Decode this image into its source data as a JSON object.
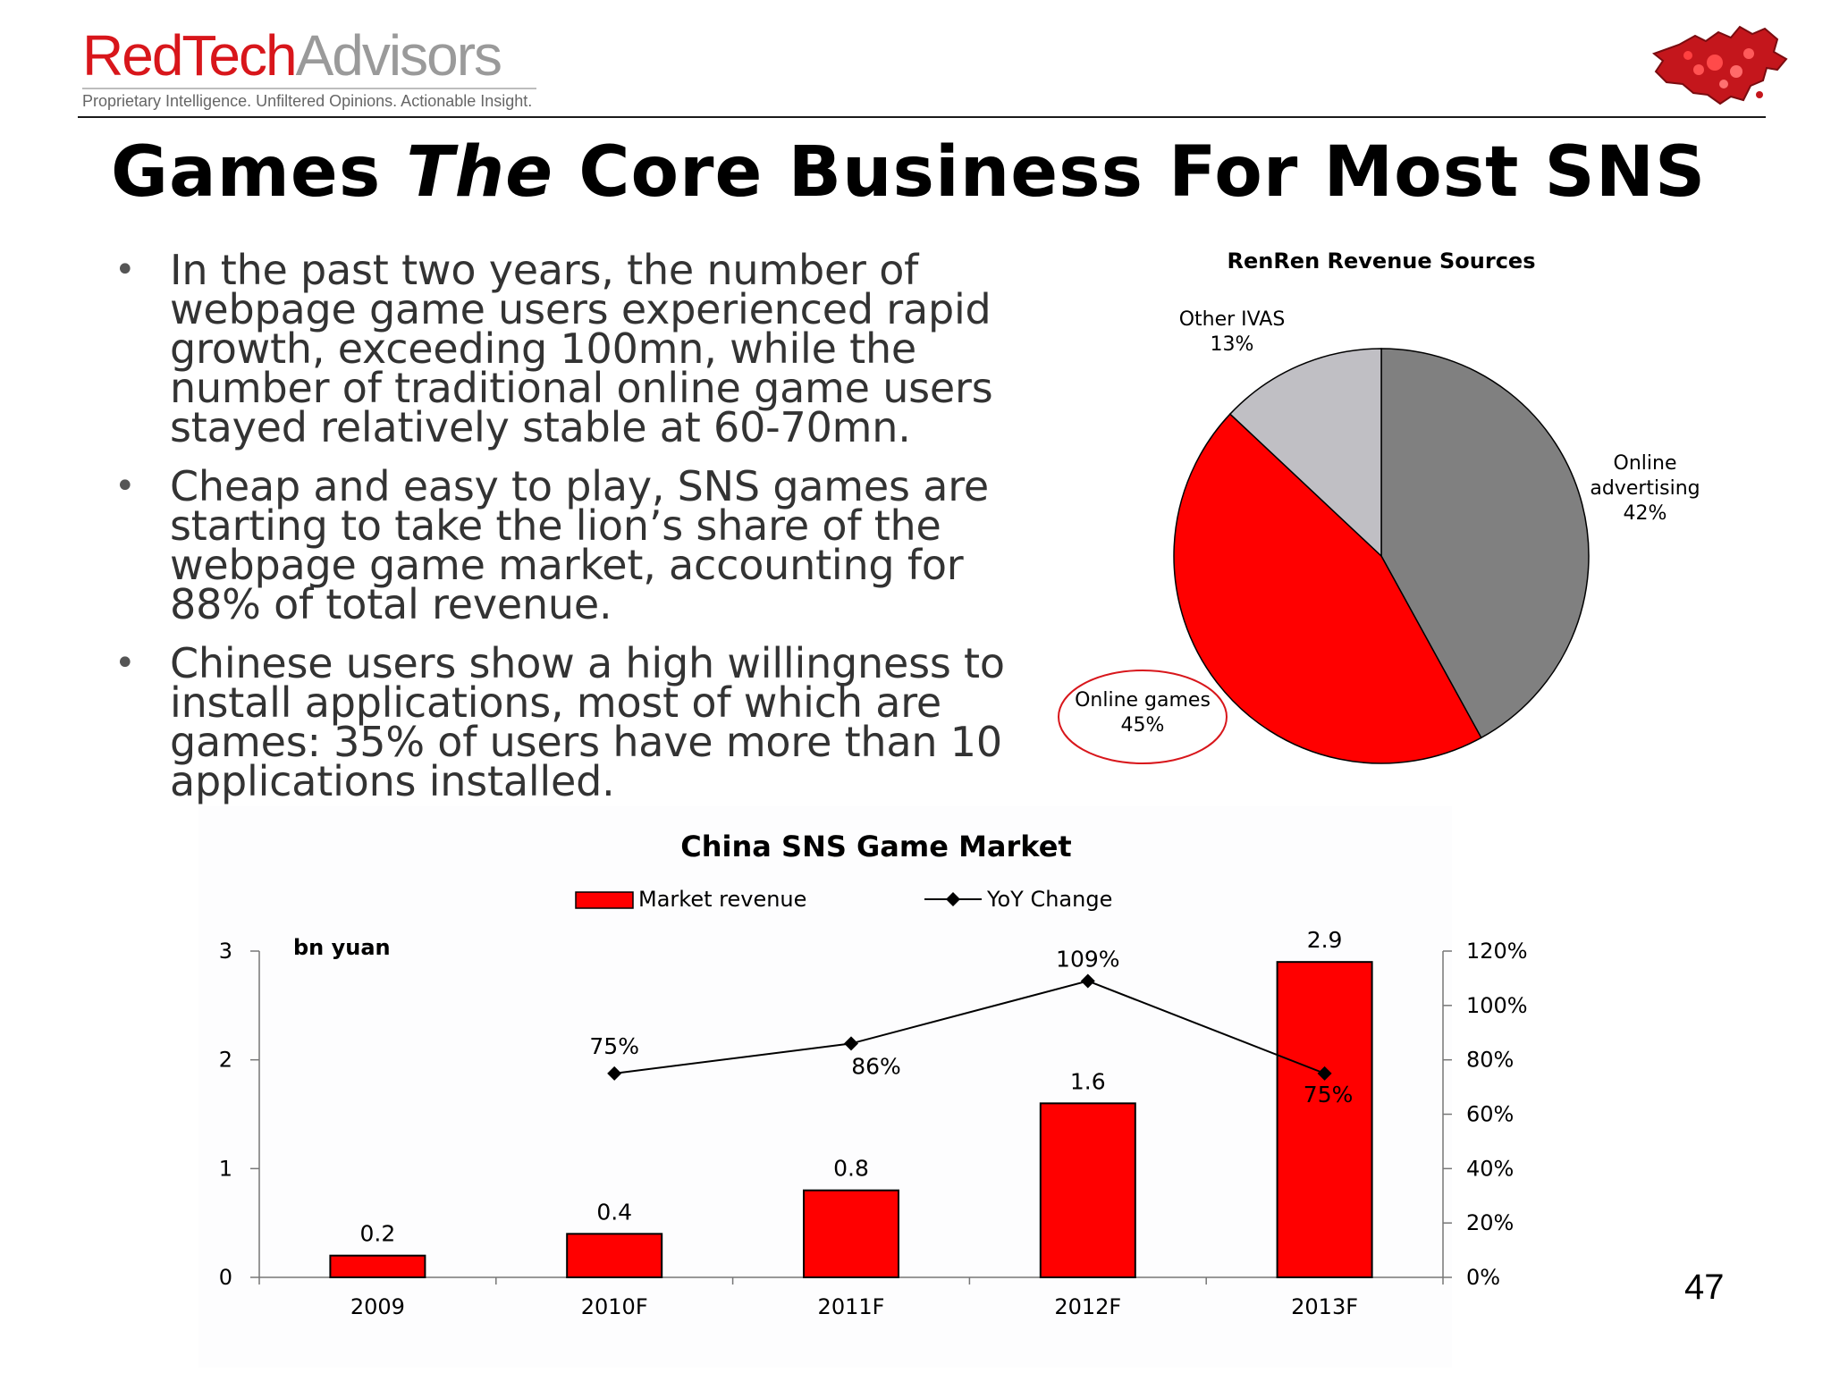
{
  "logo": {
    "red": "RedTech",
    "gray": "Advisors",
    "tagline": "Proprietary Intelligence.  Unfiltered Opinions.  Actionable Insight."
  },
  "title": {
    "part1": "Games ",
    "italic": "The",
    "part2": " Core Business For Most SNS"
  },
  "bullets": [
    "In the past two years, the number of webpage game users experienced rapid growth, exceeding 100mn, while the number of traditional online game users stayed relatively stable at 60-70mn.",
    "Cheap and easy to play, SNS games are starting to take the lion’s share of the webpage game market, accounting for 88% of total revenue.",
    "Chinese users show a high willingness to install applications, most of which are games: 35% of users have more than 10 applications installed."
  ],
  "slide_number": "47",
  "colors": {
    "brand_red": "#d8161b",
    "bar_red": "#ff0000",
    "slice_gray_dark": "#808080",
    "slice_gray_light": "#c0bfc4",
    "line_black": "#000000"
  },
  "chart_data": [
    {
      "type": "pie",
      "title": "RenRen Revenue Sources",
      "slices": [
        {
          "label": "Online advertising",
          "value": 42,
          "value_label": "42%",
          "color": "#808080"
        },
        {
          "label": "Online games",
          "value": 45,
          "value_label": "45%",
          "color": "#ff0000",
          "highlighted": true
        },
        {
          "label": "Other IVAS",
          "value": 13,
          "value_label": "13%",
          "color": "#c0bfc4"
        }
      ]
    },
    {
      "type": "bar",
      "title": "China SNS Game Market",
      "unit_label": "bn yuan",
      "categories": [
        "2009",
        "2010F",
        "2011F",
        "2012F",
        "2013F"
      ],
      "series": [
        {
          "name": "Market revenue",
          "type": "bar",
          "axis": "left",
          "values": [
            0.2,
            0.4,
            0.8,
            1.6,
            2.9
          ],
          "labels": [
            "0.2",
            "0.4",
            "0.8",
            "1.6",
            "2.9"
          ],
          "color": "#ff0000"
        },
        {
          "name": "YoY Change",
          "type": "line",
          "axis": "right",
          "values": [
            null,
            75,
            86,
            109,
            75
          ],
          "labels": [
            "",
            "75%",
            "86%",
            "109%",
            "75%"
          ],
          "color": "#000000",
          "marker": "diamond"
        }
      ],
      "ylim_left": [
        0,
        3
      ],
      "yticks_left": [
        "0",
        "1",
        "2",
        "3"
      ],
      "ylim_right": [
        0,
        120
      ],
      "yticks_right": [
        "0%",
        "20%",
        "40%",
        "60%",
        "80%",
        "100%",
        "120%"
      ],
      "legend_position": "top-center",
      "grid": false
    }
  ]
}
